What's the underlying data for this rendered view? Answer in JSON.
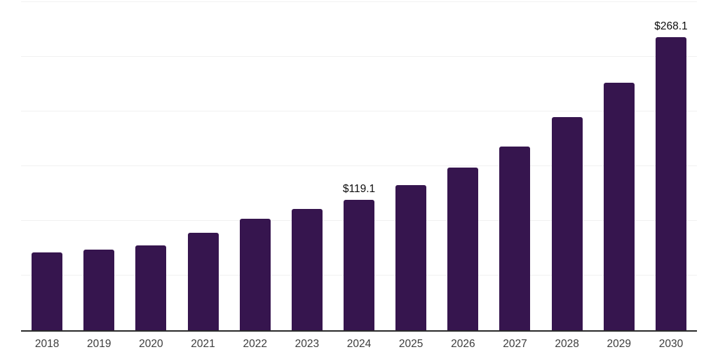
{
  "chart_data": {
    "type": "bar",
    "title": "",
    "xlabel": "",
    "ylabel": "",
    "categories": [
      "2018",
      "2019",
      "2020",
      "2021",
      "2022",
      "2023",
      "2024",
      "2025",
      "2026",
      "2027",
      "2028",
      "2029",
      "2030"
    ],
    "values": [
      71.1,
      74.0,
      77.5,
      89.2,
      101.9,
      110.8,
      119.1,
      132.4,
      149.0,
      168.0,
      194.7,
      226.4,
      268.1
    ],
    "data_labels": [
      "",
      "",
      "",
      "",
      "",
      "",
      "$119.1",
      "",
      "",
      "",
      "",
      "",
      "$268.1"
    ],
    "ylim": [
      0,
      300
    ],
    "gridline_values": [
      50,
      100,
      150,
      200,
      250,
      300
    ],
    "grid": true,
    "legend": false,
    "y_tick_labels_visible": false,
    "colors": {
      "bar": "#36154e",
      "axis_line": "#2a2a2a",
      "gridline": "#f1f1f1",
      "data_label_text": "#0d0d0d",
      "x_tick_text": "#3d3d3d",
      "background": "#ffffff"
    }
  }
}
